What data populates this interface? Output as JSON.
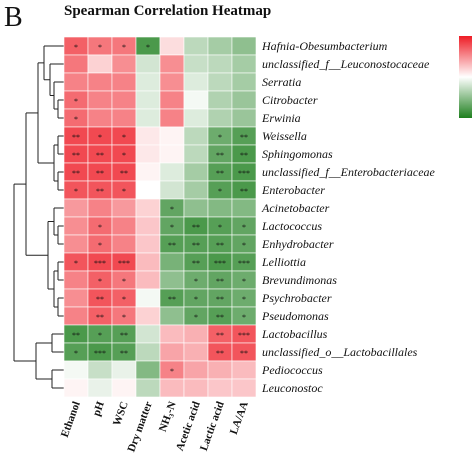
{
  "panel_label": "B",
  "chart_data": {
    "type": "heatmap",
    "title": "Spearman Correlation Heatmap",
    "columns": [
      "Ethanol",
      "pH",
      "WSC",
      "Dry matter",
      "NH₃-N",
      "Acetic acid",
      "Lactic acid",
      "LA/AA"
    ],
    "rows": [
      "Hafnia-Obesumbacterium",
      "unclassified_f__Leuconostocaceae",
      "Serratia",
      "Citrobacter",
      "Erwinia",
      "Weissella",
      "Sphingomonas",
      "unclassified_f__Enterobacteriaceae",
      "Enterobacter",
      "Acinetobacter",
      "Lactococcus",
      "Enhydrobacter",
      "Lelliottia",
      "Brevundimonas",
      "Psychrobacter",
      "Pseudomonas",
      "Lactobacillus",
      "unclassified_o__Lactobacillales",
      "Pediococcus",
      "Leuconostoc"
    ],
    "values": [
      [
        0.7,
        0.6,
        0.6,
        -0.8,
        0.15,
        -0.3,
        -0.4,
        -0.5
      ],
      [
        0.6,
        0.2,
        0.5,
        -0.2,
        0.5,
        -0.25,
        -0.3,
        -0.4
      ],
      [
        0.55,
        0.55,
        0.55,
        -0.15,
        0.5,
        -0.15,
        -0.3,
        -0.4
      ],
      [
        0.65,
        0.55,
        0.55,
        -0.15,
        0.55,
        -0.05,
        -0.35,
        -0.45
      ],
      [
        0.65,
        0.55,
        0.55,
        -0.15,
        0.55,
        -0.15,
        -0.35,
        -0.45
      ],
      [
        0.8,
        0.8,
        0.8,
        0.1,
        0.05,
        -0.3,
        -0.65,
        -0.75
      ],
      [
        0.8,
        0.8,
        0.8,
        0.1,
        0.05,
        -0.3,
        -0.7,
        -0.8
      ],
      [
        0.8,
        0.8,
        0.8,
        0.05,
        -0.15,
        -0.4,
        -0.75,
        -0.8
      ],
      [
        0.75,
        0.75,
        0.75,
        0.0,
        -0.2,
        -0.4,
        -0.75,
        -0.8
      ],
      [
        0.45,
        0.55,
        0.45,
        0.2,
        -0.7,
        -0.5,
        -0.55,
        -0.55
      ],
      [
        0.5,
        0.65,
        0.55,
        0.25,
        -0.7,
        -0.8,
        -0.75,
        -0.7
      ],
      [
        0.5,
        0.65,
        0.55,
        0.25,
        -0.75,
        -0.75,
        -0.75,
        -0.7
      ],
      [
        0.75,
        0.8,
        0.8,
        0.3,
        -0.6,
        -0.75,
        -0.8,
        -0.75
      ],
      [
        0.55,
        0.7,
        0.6,
        0.3,
        -0.5,
        -0.65,
        -0.7,
        -0.65
      ],
      [
        0.5,
        0.75,
        0.7,
        -0.05,
        -0.75,
        -0.7,
        -0.7,
        -0.65
      ],
      [
        0.55,
        0.7,
        0.6,
        0.2,
        -0.5,
        -0.7,
        -0.75,
        -0.65
      ],
      [
        -0.8,
        -0.75,
        -0.75,
        -0.2,
        0.3,
        0.35,
        0.7,
        0.75
      ],
      [
        -0.75,
        -0.8,
        -0.75,
        -0.3,
        0.4,
        0.35,
        0.75,
        0.75
      ],
      [
        -0.05,
        -0.25,
        -0.1,
        -0.55,
        0.55,
        0.4,
        0.35,
        0.3
      ],
      [
        0.05,
        -0.1,
        0.05,
        -0.3,
        0.3,
        0.3,
        0.25,
        0.25
      ]
    ],
    "stars": [
      [
        "*",
        "*",
        "*",
        "*",
        "",
        "",
        "",
        ""
      ],
      [
        "",
        "",
        "",
        "",
        "",
        "",
        "",
        ""
      ],
      [
        "",
        "",
        "",
        "",
        "",
        "",
        "",
        ""
      ],
      [
        "*",
        "",
        "",
        "",
        "",
        "",
        "",
        ""
      ],
      [
        "*",
        "",
        "",
        "",
        "",
        "",
        "",
        ""
      ],
      [
        "**",
        "*",
        "*",
        "",
        "",
        "",
        "*",
        "**"
      ],
      [
        "**",
        "**",
        "*",
        "",
        "",
        "",
        "**",
        "**"
      ],
      [
        "**",
        "**",
        "**",
        "",
        "",
        "",
        "**",
        "***"
      ],
      [
        "*",
        "**",
        "*",
        "",
        "",
        "",
        "*",
        "**"
      ],
      [
        "",
        "",
        "",
        "",
        "*",
        "",
        "",
        ""
      ],
      [
        "",
        "*",
        "",
        "",
        "*",
        "**",
        "*",
        "*"
      ],
      [
        "",
        "*",
        "",
        "",
        "**",
        "**",
        "**",
        "*"
      ],
      [
        "*",
        "***",
        "***",
        "",
        "",
        "**",
        "***",
        "***"
      ],
      [
        "",
        "*",
        "*",
        "",
        "",
        "*",
        "**",
        "*"
      ],
      [
        "",
        "**",
        "*",
        "",
        "**",
        "*",
        "**",
        "*"
      ],
      [
        "",
        "**",
        "*",
        "",
        "",
        "*",
        "**",
        "*"
      ],
      [
        "**",
        "*",
        "**",
        "",
        "",
        "",
        "**",
        "***"
      ],
      [
        "*",
        "***",
        "**",
        "",
        "",
        "",
        "**",
        "**"
      ],
      [
        "",
        "",
        "",
        "",
        "*",
        "",
        "",
        ""
      ],
      [
        "",
        "",
        "",
        "",
        "",
        "",
        "",
        ""
      ]
    ],
    "colorbar": {
      "range": [
        -1,
        1
      ],
      "colors": [
        "#1e7f1e",
        "#ffffff",
        "#ee1c25"
      ]
    }
  }
}
